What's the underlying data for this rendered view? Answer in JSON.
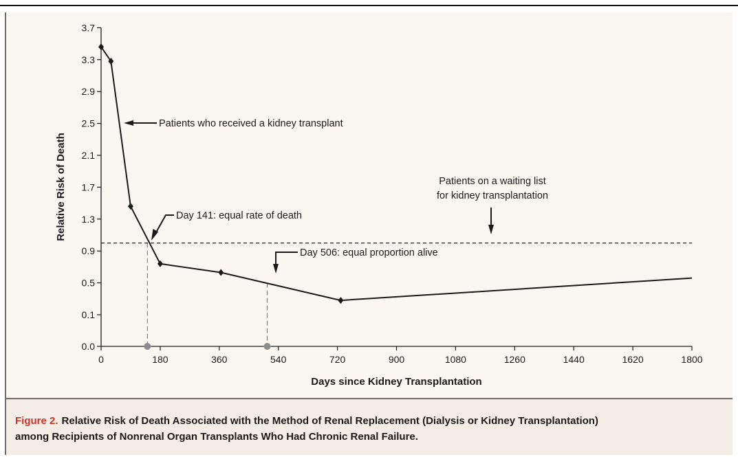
{
  "chart_data": {
    "type": "line",
    "x_label": "Days since Kidney Transplantation",
    "y_label": "Relative Risk of Death",
    "xlim": [
      0,
      1800
    ],
    "xticks": [
      0,
      180,
      360,
      540,
      720,
      900,
      1080,
      1260,
      1440,
      1620,
      1800
    ],
    "ylim": [
      0.1,
      3.7
    ],
    "yticks": [
      0.1,
      0.5,
      0.9,
      1.3,
      1.7,
      2.1,
      2.5,
      2.9,
      3.3,
      3.7
    ],
    "y_break_tick": {
      "value": 0,
      "label": "0.0"
    },
    "series": [
      {
        "name": "Patients who received a kidney transplant",
        "color": "#1a1a1a",
        "x": [
          0,
          30,
          90,
          180,
          365,
          730,
          1800
        ],
        "values": [
          3.46,
          3.28,
          1.46,
          0.74,
          0.63,
          0.28,
          0.56
        ]
      },
      {
        "name_lines": [
          "Patients on a waiting list",
          "for kidney transplantation"
        ],
        "color": "#1a1a1a",
        "dashed": true,
        "x": [
          0,
          1800
        ],
        "values": [
          1.0,
          1.0
        ]
      }
    ],
    "markers": [
      {
        "x": 141,
        "y": 1.0,
        "label": "Day 141: equal rate of death"
      },
      {
        "x": 506,
        "y": 0.5,
        "label": "Day 506: equal proportion alive"
      }
    ]
  },
  "caption": {
    "label": "Figure 2.",
    "lines": [
      "Relative Risk of Death Associated with the Method of Renal Replacement (Dialysis or Kidney Transplantation)",
      "among Recipients of Nonrenal Organ Transplants Who Had Chronic Renal Failure."
    ]
  }
}
